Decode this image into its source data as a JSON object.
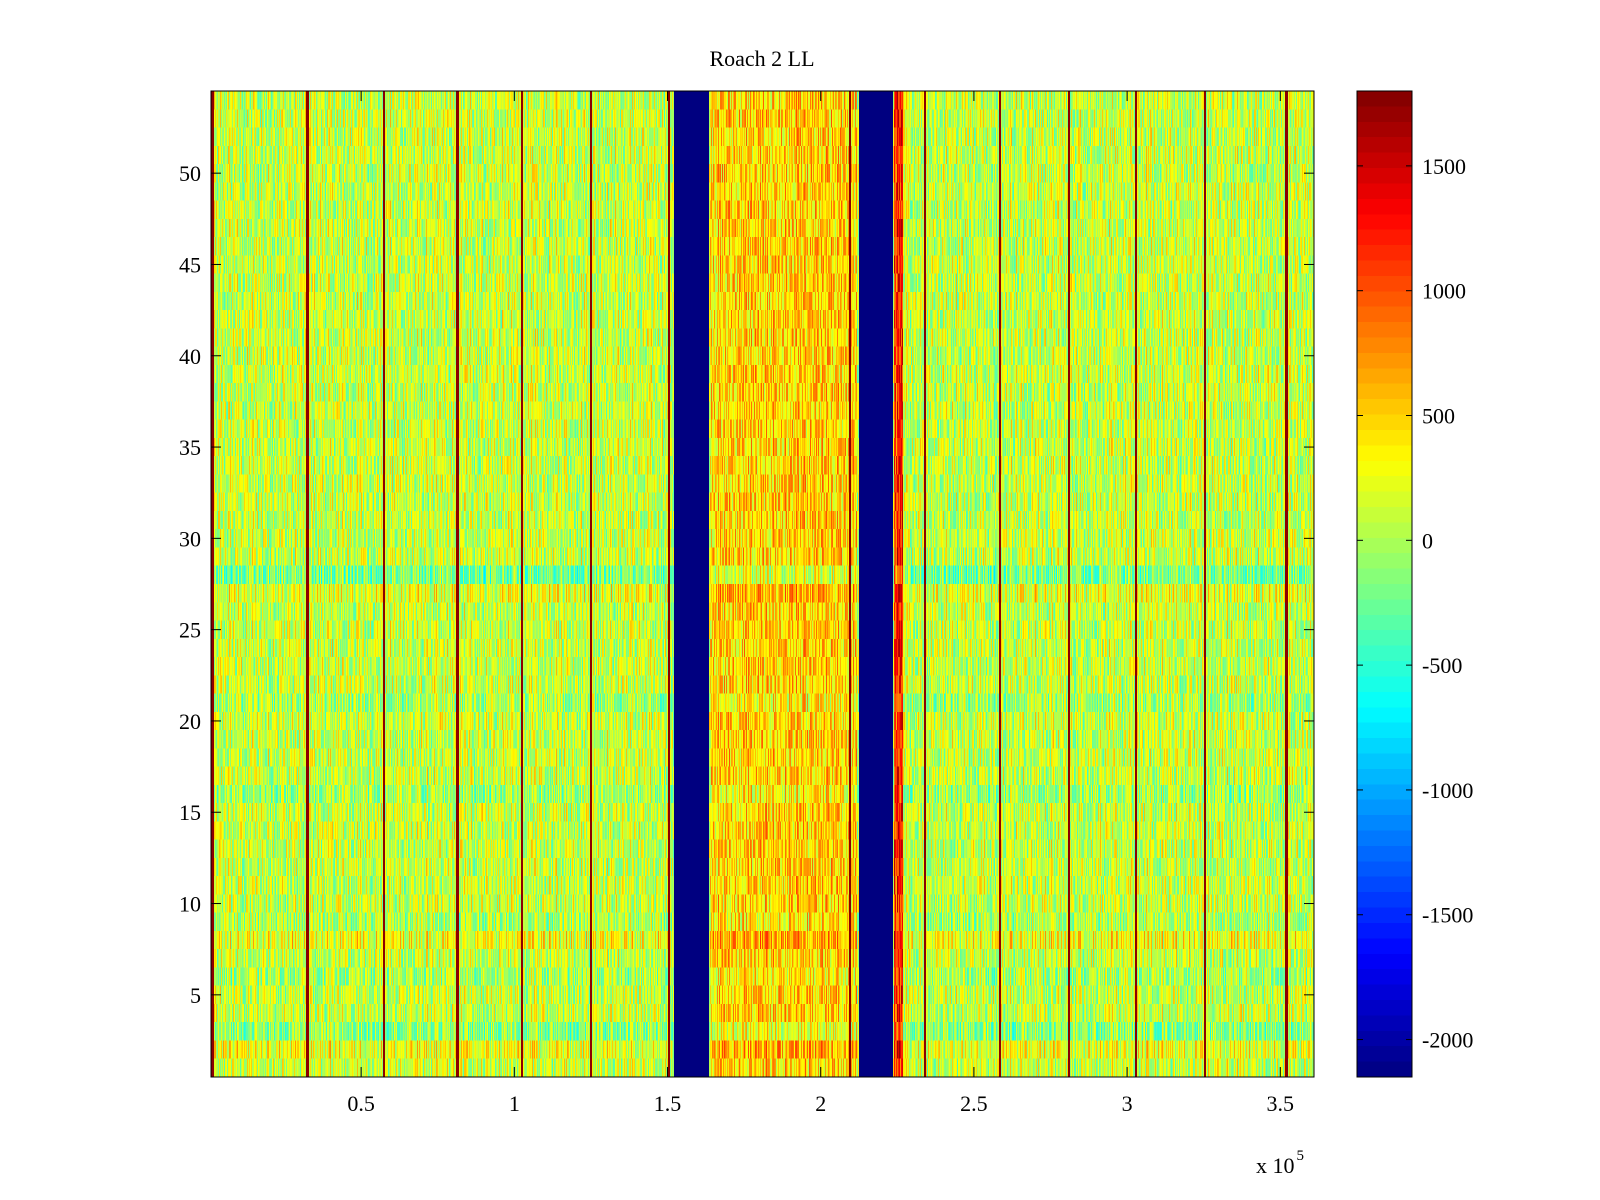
{
  "chart_data": {
    "type": "heatmap",
    "title": "Roach 2 LL",
    "xlabel": "",
    "ylabel": "",
    "x_exponent_label": "x 10",
    "x_exponent_power": "5",
    "xlim": [
      1000,
      361000
    ],
    "ylim": [
      0.5,
      54.5
    ],
    "x_ticks": [
      {
        "value": 50000,
        "label": "0.5"
      },
      {
        "value": 100000,
        "label": "1"
      },
      {
        "value": 150000,
        "label": "1.5"
      },
      {
        "value": 200000,
        "label": "2"
      },
      {
        "value": 250000,
        "label": "2.5"
      },
      {
        "value": 300000,
        "label": "3"
      },
      {
        "value": 350000,
        "label": "3.5"
      }
    ],
    "y_ticks": [
      {
        "value": 5,
        "label": "5"
      },
      {
        "value": 10,
        "label": "10"
      },
      {
        "value": 15,
        "label": "15"
      },
      {
        "value": 20,
        "label": "20"
      },
      {
        "value": 25,
        "label": "25"
      },
      {
        "value": 30,
        "label": "30"
      },
      {
        "value": 35,
        "label": "35"
      },
      {
        "value": 40,
        "label": "40"
      },
      {
        "value": 45,
        "label": "45"
      },
      {
        "value": 50,
        "label": "50"
      }
    ],
    "colormap": "jet",
    "clim": [
      -2150,
      1800
    ],
    "colorbar_ticks": [
      {
        "value": 1500,
        "label": "1500"
      },
      {
        "value": 1000,
        "label": "1000"
      },
      {
        "value": 500,
        "label": "500"
      },
      {
        "value": 0,
        "label": "0"
      },
      {
        "value": -500,
        "label": "-500"
      },
      {
        "value": -1000,
        "label": "-1000"
      },
      {
        "value": -1500,
        "label": "-1500"
      },
      {
        "value": -2000,
        "label": "-2000"
      }
    ],
    "rows": 54,
    "background_mean": 100,
    "background_spread": 420,
    "masked_bands": [
      {
        "x_start": 152000,
        "x_end": 163500,
        "value": -2150
      },
      {
        "x_start": 212500,
        "x_end": 223500,
        "value": -2150
      }
    ],
    "warm_regions": [
      {
        "x_start": 164000,
        "x_end": 212000,
        "offset": 380
      },
      {
        "x_start": 224000,
        "x_end": 227000,
        "offset": 1050
      }
    ],
    "vertical_lines_x": [
      1500,
      32500,
      57500,
      81500,
      102500,
      125000,
      150500,
      209500,
      234000,
      258500,
      281000,
      303000,
      325500,
      352000
    ],
    "vertical_line_value": 1750,
    "row_offsets": [
      {
        "row": 2,
        "offset": 150
      },
      {
        "row": 3,
        "offset": -220
      },
      {
        "row": 6,
        "offset": -120
      },
      {
        "row": 8,
        "offset": 170
      },
      {
        "row": 9,
        "offset": -100
      },
      {
        "row": 16,
        "offset": -150
      },
      {
        "row": 21,
        "offset": -120
      },
      {
        "row": 27,
        "offset": 120
      },
      {
        "row": 28,
        "offset": -300
      }
    ],
    "grid": false,
    "legend": "none",
    "colorbar_position": "right"
  }
}
